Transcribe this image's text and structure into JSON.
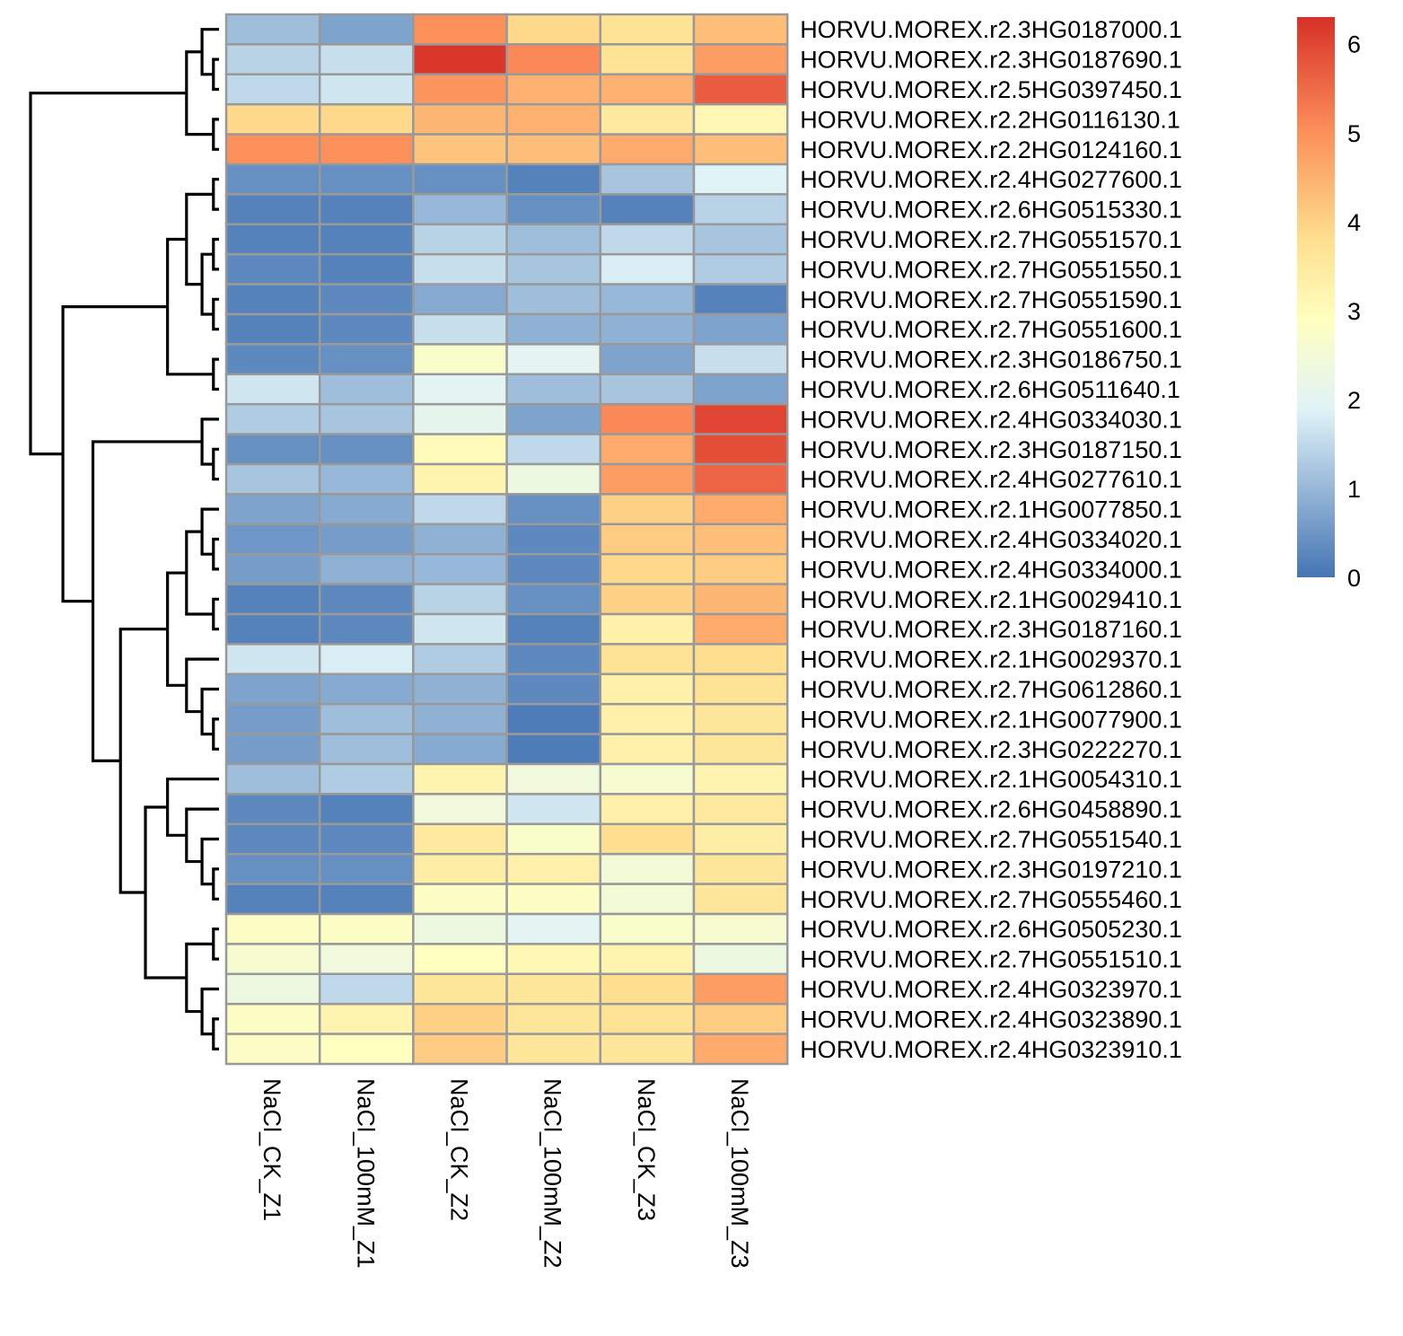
{
  "chart_data": {
    "type": "heatmap",
    "columns": [
      "NaCl_CK_Z1",
      "NaCl_100mM_Z1",
      "NaCl_CK_Z2",
      "NaCl_100mM_Z2",
      "NaCl_CK_Z3",
      "NaCl_100mM_Z3"
    ],
    "rows": [
      "HORVU.MOREX.r2.3HG0187000.1",
      "HORVU.MOREX.r2.3HG0187690.1",
      "HORVU.MOREX.r2.5HG0397450.1",
      "HORVU.MOREX.r2.2HG0116130.1",
      "HORVU.MOREX.r2.2HG0124160.1",
      "HORVU.MOREX.r2.4HG0277600.1",
      "HORVU.MOREX.r2.6HG0515330.1",
      "HORVU.MOREX.r2.7HG0551570.1",
      "HORVU.MOREX.r2.7HG0551550.1",
      "HORVU.MOREX.r2.7HG0551590.1",
      "HORVU.MOREX.r2.7HG0551600.1",
      "HORVU.MOREX.r2.3HG0186750.1",
      "HORVU.MOREX.r2.6HG0511640.1",
      "HORVU.MOREX.r2.4HG0334030.1",
      "HORVU.MOREX.r2.3HG0187150.1",
      "HORVU.MOREX.r2.4HG0277610.1",
      "HORVU.MOREX.r2.1HG0077850.1",
      "HORVU.MOREX.r2.4HG0334020.1",
      "HORVU.MOREX.r2.4HG0334000.1",
      "HORVU.MOREX.r2.1HG0029410.1",
      "HORVU.MOREX.r2.3HG0187160.1",
      "HORVU.MOREX.r2.1HG0029370.1",
      "HORVU.MOREX.r2.7HG0612860.1",
      "HORVU.MOREX.r2.1HG0077900.1",
      "HORVU.MOREX.r2.3HG0222270.1",
      "HORVU.MOREX.r2.1HG0054310.1",
      "HORVU.MOREX.r2.6HG0458890.1",
      "HORVU.MOREX.r2.7HG0551540.1",
      "HORVU.MOREX.r2.3HG0197210.1",
      "HORVU.MOREX.r2.7HG0555460.1",
      "HORVU.MOREX.r2.6HG0505230.1",
      "HORVU.MOREX.r2.7HG0551510.1",
      "HORVU.MOREX.r2.4HG0323970.1",
      "HORVU.MOREX.r2.4HG0323890.1",
      "HORVU.MOREX.r2.4HG0323910.1"
    ],
    "values": [
      [
        1.1,
        0.7,
        5.0,
        3.9,
        3.7,
        4.3
      ],
      [
        1.4,
        1.6,
        6.2,
        5.1,
        3.7,
        4.8
      ],
      [
        1.5,
        1.7,
        4.9,
        4.5,
        4.5,
        5.7
      ],
      [
        3.9,
        3.9,
        4.4,
        4.5,
        3.5,
        3.1
      ],
      [
        5.0,
        5.0,
        4.2,
        4.3,
        4.6,
        4.3
      ],
      [
        0.4,
        0.4,
        0.4,
        0.2,
        1.2,
        1.9
      ],
      [
        0.2,
        0.2,
        1.0,
        0.4,
        0.2,
        1.4
      ],
      [
        0.2,
        0.2,
        1.4,
        1.1,
        1.5,
        1.2
      ],
      [
        0.3,
        0.2,
        1.6,
        1.2,
        1.8,
        1.3
      ],
      [
        0.2,
        0.3,
        0.8,
        1.1,
        1.0,
        0.2
      ],
      [
        0.2,
        0.3,
        1.6,
        0.9,
        0.9,
        0.7
      ],
      [
        0.3,
        0.4,
        2.7,
        2.0,
        0.7,
        1.6
      ],
      [
        1.7,
        1.1,
        2.0,
        1.1,
        1.2,
        0.7
      ],
      [
        1.3,
        1.2,
        2.1,
        0.7,
        5.1,
        6.0
      ],
      [
        0.4,
        0.4,
        3.0,
        1.5,
        4.6,
        5.9
      ],
      [
        1.2,
        1.0,
        3.2,
        2.3,
        4.8,
        5.6
      ],
      [
        0.7,
        0.8,
        1.5,
        0.4,
        4.0,
        4.6
      ],
      [
        0.5,
        0.6,
        0.9,
        0.3,
        4.1,
        4.3
      ],
      [
        0.6,
        0.9,
        1.0,
        0.3,
        3.9,
        4.1
      ],
      [
        0.2,
        0.3,
        1.4,
        0.4,
        4.0,
        4.4
      ],
      [
        0.2,
        0.3,
        1.7,
        0.2,
        3.3,
        4.6
      ],
      [
        1.7,
        1.8,
        1.3,
        0.3,
        3.7,
        3.8
      ],
      [
        0.7,
        0.8,
        0.9,
        0.3,
        3.3,
        3.7
      ],
      [
        0.6,
        1.1,
        0.9,
        0.1,
        3.3,
        3.6
      ],
      [
        0.6,
        1.1,
        0.8,
        0.1,
        3.3,
        3.6
      ],
      [
        1.1,
        1.3,
        3.2,
        2.4,
        2.6,
        3.2
      ],
      [
        0.3,
        0.2,
        2.4,
        1.7,
        3.3,
        3.5
      ],
      [
        0.3,
        0.3,
        3.5,
        2.7,
        3.8,
        3.4
      ],
      [
        0.4,
        0.4,
        3.4,
        3.3,
        2.5,
        3.6
      ],
      [
        0.2,
        0.2,
        2.8,
        2.8,
        2.5,
        3.6
      ],
      [
        2.8,
        2.8,
        2.3,
        2.0,
        2.7,
        2.6
      ],
      [
        2.6,
        2.4,
        2.9,
        3.1,
        3.2,
        2.3
      ],
      [
        2.3,
        1.5,
        3.6,
        3.6,
        3.8,
        4.8
      ],
      [
        2.8,
        3.2,
        4.0,
        3.6,
        3.7,
        4.1
      ],
      [
        2.8,
        2.9,
        4.1,
        3.6,
        3.6,
        4.6
      ]
    ],
    "colorbar": {
      "min": 0,
      "max": 6.3,
      "ticks": [
        0,
        1,
        2,
        3,
        4,
        5,
        6
      ],
      "colors": [
        "#4575b4",
        "#e0f3f8",
        "#ffffbf",
        "#fee090",
        "#fc8d59",
        "#d73027"
      ],
      "positions": [
        0,
        0.3,
        0.46,
        0.6,
        0.8,
        1
      ]
    },
    "cell_border_color": "#999999",
    "dendrogram_color": "#000000"
  }
}
